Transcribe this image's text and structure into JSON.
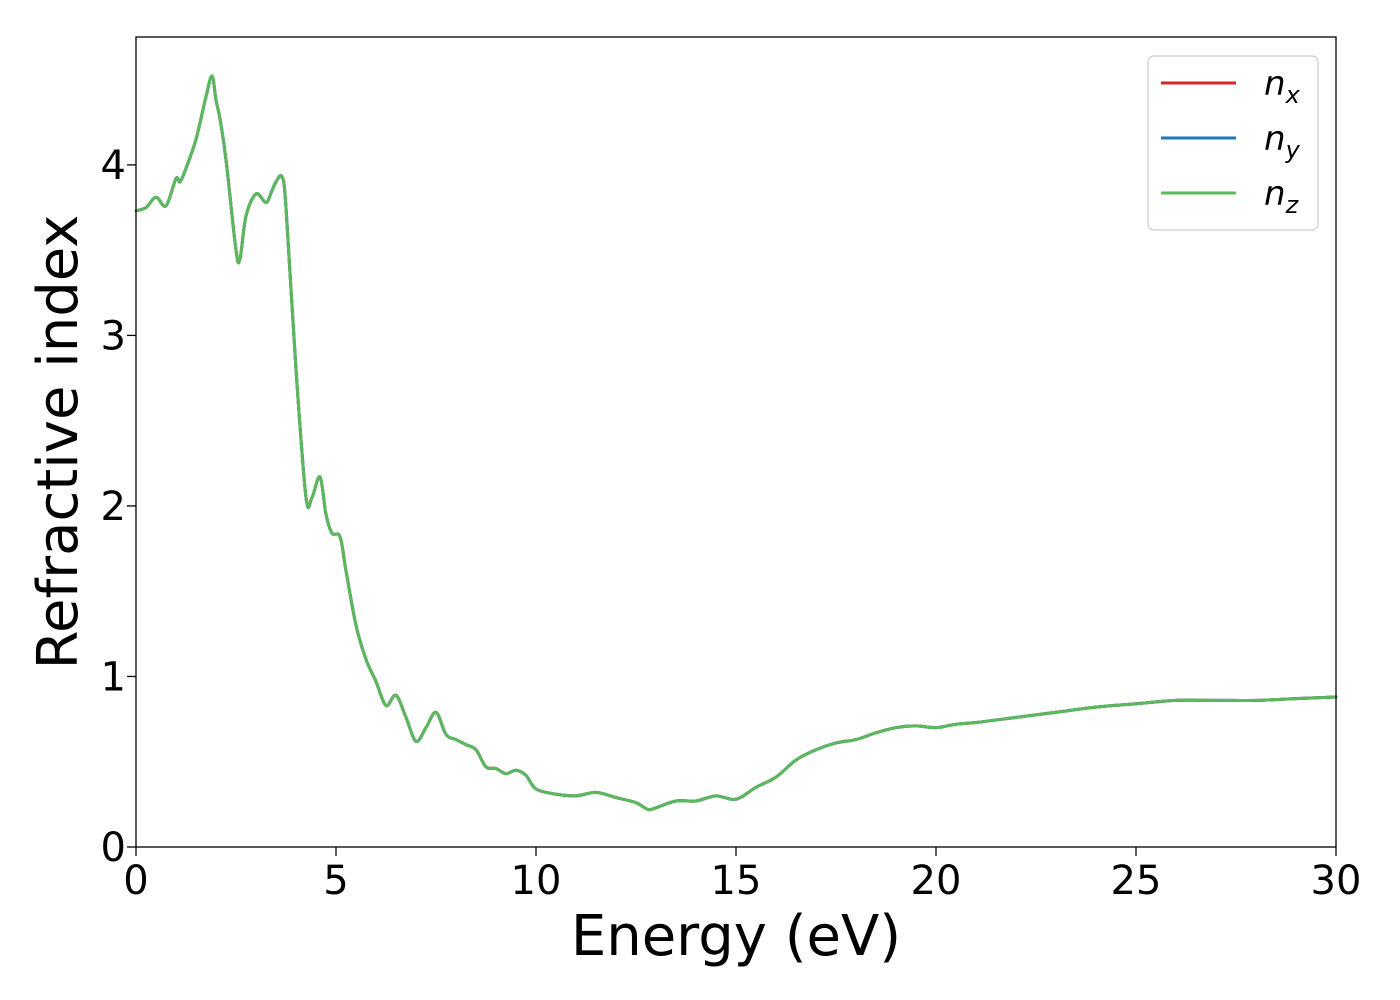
{
  "chart_data": {
    "type": "line",
    "title": "",
    "xlabel": "Energy (eV)",
    "ylabel": "Refractive index",
    "xlim": [
      0,
      30
    ],
    "ylim": [
      0,
      4.75
    ],
    "xticks": [
      0,
      5,
      10,
      15,
      20,
      25,
      30
    ],
    "yticks": [
      0,
      1,
      2,
      3,
      4
    ],
    "xtick_labels": [
      "0",
      "5",
      "10",
      "15",
      "20",
      "25",
      "30"
    ],
    "ytick_labels": [
      "0",
      "1",
      "2",
      "3",
      "4"
    ],
    "grid": false,
    "legend": {
      "position": "top-right",
      "entries": [
        {
          "base": "n",
          "sub": "x",
          "color": "#d62728"
        },
        {
          "base": "n",
          "sub": "y",
          "color": "#1f77b4"
        },
        {
          "base": "n",
          "sub": "z",
          "color": "#5cb85c"
        }
      ]
    },
    "x": [
      0,
      0.25,
      0.5,
      0.75,
      1.0,
      1.1,
      1.25,
      1.5,
      1.75,
      1.9,
      2.0,
      2.1,
      2.25,
      2.5,
      2.6,
      2.75,
      3.0,
      3.25,
      3.4,
      3.5,
      3.65,
      3.75,
      4.0,
      4.25,
      4.4,
      4.6,
      4.75,
      4.9,
      5.1,
      5.25,
      5.5,
      5.75,
      6.0,
      6.25,
      6.5,
      6.75,
      7.0,
      7.25,
      7.5,
      7.75,
      8.0,
      8.25,
      8.5,
      8.75,
      9.0,
      9.25,
      9.5,
      9.75,
      10,
      10.5,
      11,
      11.5,
      12,
      12.5,
      12.8,
      13,
      13.5,
      14,
      14.5,
      15,
      15.5,
      16,
      16.5,
      17,
      17.5,
      18,
      18.5,
      19,
      19.5,
      20,
      20.5,
      21,
      22,
      23,
      24,
      25,
      26,
      27,
      28,
      29,
      30
    ],
    "series": [
      {
        "name": "n_x",
        "color": "#d62728",
        "values": [
          3.73,
          3.75,
          3.81,
          3.76,
          3.92,
          3.9,
          3.98,
          4.15,
          4.4,
          4.52,
          4.38,
          4.27,
          4.03,
          3.5,
          3.45,
          3.7,
          3.83,
          3.78,
          3.85,
          3.9,
          3.93,
          3.75,
          2.8,
          2.05,
          2.05,
          2.17,
          1.95,
          1.84,
          1.82,
          1.62,
          1.3,
          1.1,
          0.97,
          0.83,
          0.89,
          0.76,
          0.62,
          0.7,
          0.79,
          0.66,
          0.63,
          0.6,
          0.57,
          0.47,
          0.46,
          0.43,
          0.45,
          0.42,
          0.34,
          0.31,
          0.3,
          0.32,
          0.29,
          0.26,
          0.22,
          0.23,
          0.27,
          0.27,
          0.3,
          0.28,
          0.35,
          0.41,
          0.51,
          0.57,
          0.61,
          0.63,
          0.67,
          0.7,
          0.71,
          0.7,
          0.72,
          0.73,
          0.76,
          0.79,
          0.82,
          0.84,
          0.86,
          0.86,
          0.86,
          0.87,
          0.88
        ]
      },
      {
        "name": "n_y",
        "color": "#1f77b4",
        "values": [
          3.73,
          3.75,
          3.81,
          3.76,
          3.92,
          3.9,
          3.98,
          4.15,
          4.4,
          4.52,
          4.38,
          4.27,
          4.03,
          3.5,
          3.45,
          3.7,
          3.83,
          3.78,
          3.85,
          3.9,
          3.93,
          3.75,
          2.8,
          2.05,
          2.05,
          2.17,
          1.95,
          1.84,
          1.82,
          1.62,
          1.3,
          1.1,
          0.97,
          0.83,
          0.89,
          0.76,
          0.62,
          0.7,
          0.79,
          0.66,
          0.63,
          0.6,
          0.57,
          0.47,
          0.46,
          0.43,
          0.45,
          0.42,
          0.34,
          0.31,
          0.3,
          0.32,
          0.29,
          0.26,
          0.22,
          0.23,
          0.27,
          0.27,
          0.3,
          0.28,
          0.35,
          0.41,
          0.51,
          0.57,
          0.61,
          0.63,
          0.67,
          0.7,
          0.71,
          0.7,
          0.72,
          0.73,
          0.76,
          0.79,
          0.82,
          0.84,
          0.86,
          0.86,
          0.86,
          0.87,
          0.88
        ]
      },
      {
        "name": "n_z",
        "color": "#5cb85c",
        "values": [
          3.73,
          3.75,
          3.81,
          3.76,
          3.92,
          3.9,
          3.98,
          4.15,
          4.4,
          4.52,
          4.38,
          4.27,
          4.03,
          3.5,
          3.45,
          3.7,
          3.83,
          3.78,
          3.85,
          3.9,
          3.93,
          3.75,
          2.8,
          2.05,
          2.05,
          2.17,
          1.95,
          1.84,
          1.82,
          1.62,
          1.3,
          1.1,
          0.97,
          0.83,
          0.89,
          0.76,
          0.62,
          0.7,
          0.79,
          0.66,
          0.63,
          0.6,
          0.57,
          0.47,
          0.46,
          0.43,
          0.45,
          0.42,
          0.34,
          0.31,
          0.3,
          0.32,
          0.29,
          0.26,
          0.22,
          0.23,
          0.27,
          0.27,
          0.3,
          0.28,
          0.35,
          0.41,
          0.51,
          0.57,
          0.61,
          0.63,
          0.67,
          0.7,
          0.71,
          0.7,
          0.72,
          0.73,
          0.76,
          0.79,
          0.82,
          0.84,
          0.86,
          0.86,
          0.86,
          0.87,
          0.88
        ]
      }
    ]
  }
}
